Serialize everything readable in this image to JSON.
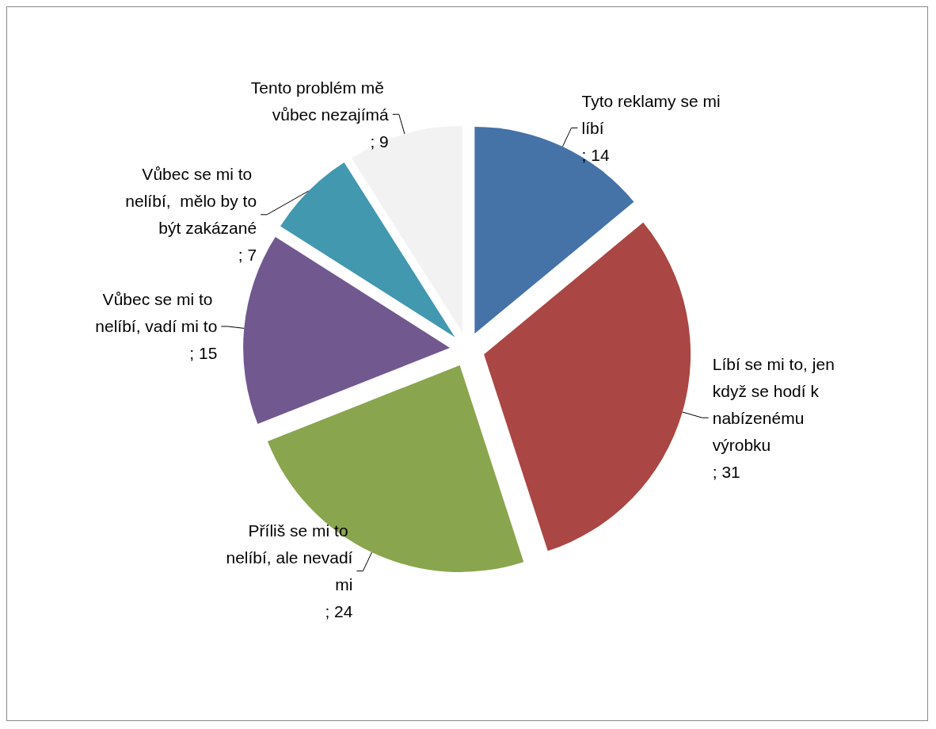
{
  "chart_data": {
    "type": "pie",
    "categories": [
      "Tyto reklamy se mi líbí",
      "Líbí se mi to, jen když se hodí k nabízenému výrobku",
      "Příliš se mi to nelíbí, ale nevadí mi",
      "Vůbec se mi to nelíbí, vadí mi to",
      "Vůbec se mi to nelíbí,  mělo by to být zakázané",
      "Tento problém mě vůbec nezajímá"
    ],
    "values": [
      14,
      31,
      24,
      15,
      7,
      9
    ],
    "colors": [
      "#4572a7",
      "#aa4643",
      "#89a54e",
      "#71588f",
      "#4198af",
      "#f2f2f2"
    ],
    "value_labels": [
      "; 14",
      "; 31",
      "; 24",
      "; 15",
      "; 7",
      "; 9"
    ],
    "legend": false
  }
}
